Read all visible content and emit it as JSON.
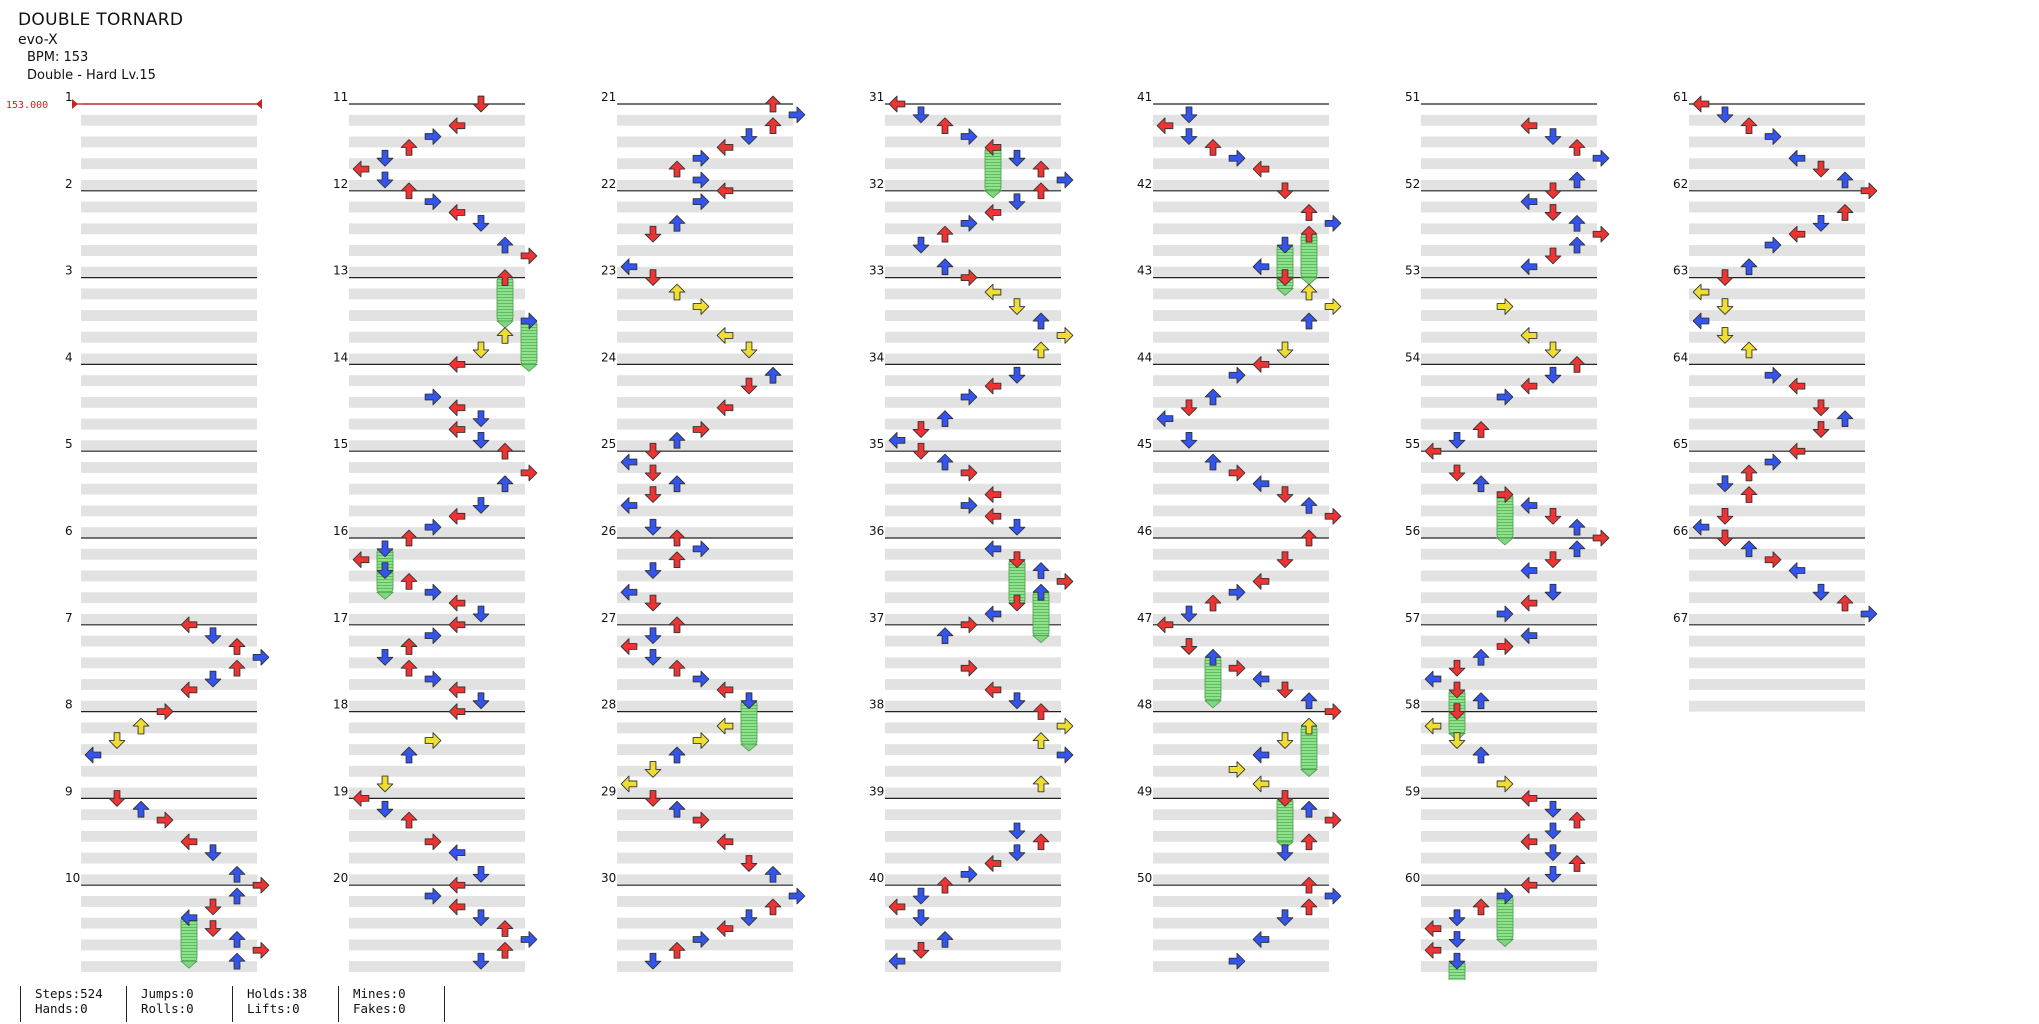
{
  "song": {
    "title": "DOUBLE TORNARD",
    "artist": "evo-X",
    "bpm_text": "BPM: 153",
    "difficulty_text": "Double - Hard Lv.15"
  },
  "bpm_marker": "153.000",
  "measure_labels": [
    "1",
    "2",
    "3",
    "4",
    "5",
    "6",
    "7",
    "8",
    "9",
    "10",
    "11",
    "12",
    "13",
    "14",
    "15",
    "16",
    "17",
    "18",
    "19",
    "20",
    "21",
    "22",
    "23",
    "24",
    "25",
    "26",
    "27",
    "28",
    "29",
    "30",
    "31",
    "32",
    "33",
    "34",
    "35",
    "36",
    "37",
    "38",
    "39",
    "40",
    "41",
    "42",
    "43",
    "44",
    "45",
    "46",
    "47",
    "48",
    "49",
    "50",
    "51",
    "52",
    "53",
    "54",
    "55",
    "56",
    "57",
    "58",
    "59",
    "60",
    "61",
    "62",
    "63",
    "64",
    "65",
    "66",
    "67"
  ],
  "colors": {
    "quarter": "#ee3333",
    "eighth": "#3355ee",
    "sixteenth": "#eedd33",
    "hold": "#7fd67f",
    "band": "#e2e2e2",
    "bpm": "#cc2222"
  },
  "stats": [
    {
      "text": "Steps:524",
      "group": 0
    },
    {
      "text": "Hands:0",
      "group": 0
    },
    {
      "text": "Jumps:0",
      "group": 1
    },
    {
      "text": "Rolls:0",
      "group": 1
    },
    {
      "text": "Holds:38",
      "group": 2
    },
    {
      "text": "Lifts:0",
      "group": 2
    },
    {
      "text": "Mines:0",
      "group": 3
    },
    {
      "text": "Fakes:0",
      "group": 3
    }
  ]
}
